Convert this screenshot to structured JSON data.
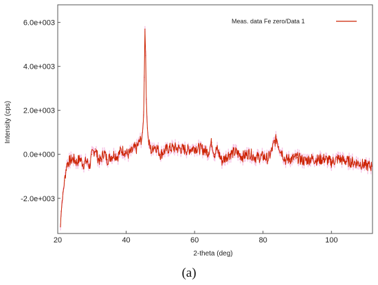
{
  "chart_data": {
    "type": "line",
    "title": "",
    "xlabel": "2-theta (deg)",
    "ylabel": "Intensity (cps)",
    "xlim": [
      20,
      112
    ],
    "ylim": [
      -3600,
      6800
    ],
    "x_ticks": [
      20,
      40,
      60,
      80,
      100
    ],
    "x_tick_labels": [
      "20",
      "40",
      "60",
      "80",
      "100"
    ],
    "y_ticks": [
      -2000,
      0,
      2000,
      4000,
      6000
    ],
    "y_tick_labels": [
      "-2.0e+003",
      "0.0e+000",
      "2.0e+003",
      "4.0e+003",
      "6.0e+003"
    ],
    "grid": false,
    "legend_position": "top-right",
    "series": [
      {
        "name": "Meas. data Fe zero/Data 1",
        "color": "#cc2200",
        "x": [
          20.8,
          21.0,
          21.3,
          21.6,
          22.0,
          22.4,
          22.8,
          23.5,
          24.5,
          25.5,
          26.5,
          27.5,
          28.5,
          29.3,
          30.0,
          31.0,
          31.8,
          32.5,
          33.5,
          34.5,
          35.5,
          36.5,
          37.5,
          38.5,
          39.5,
          40.5,
          41.5,
          42.5,
          43.0,
          43.5,
          44.0,
          44.5,
          44.8,
          45.1,
          45.3,
          45.5,
          45.7,
          45.9,
          46.2,
          46.5,
          47.0,
          47.5,
          48.0,
          49.0,
          50.0,
          52.0,
          54.0,
          56.0,
          58.0,
          60.0,
          62.0,
          64.0,
          65.0,
          65.8,
          66.5,
          68.0,
          70.0,
          72.0,
          74.0,
          76.0,
          78.0,
          80.0,
          81.5,
          82.5,
          83.3,
          84.0,
          84.6,
          85.5,
          86.5,
          88.0,
          90.0,
          92.0,
          94.0,
          96.0,
          98.0,
          100.0,
          102.0,
          104.0,
          106.0,
          108.0,
          110.0,
          111.8
        ],
        "y": [
          -3300,
          -2600,
          -2100,
          -1700,
          -1200,
          -700,
          -400,
          -300,
          -200,
          -350,
          -200,
          -450,
          -300,
          -550,
          0,
          250,
          -200,
          -300,
          100,
          -250,
          -100,
          0,
          -100,
          200,
          150,
          0,
          100,
          300,
          250,
          450,
          600,
          700,
          1000,
          1800,
          3500,
          5700,
          4500,
          2500,
          1200,
          600,
          300,
          100,
          400,
          300,
          0,
          250,
          300,
          250,
          200,
          300,
          250,
          100,
          550,
          0,
          250,
          -300,
          0,
          100,
          -100,
          50,
          -150,
          -100,
          -200,
          150,
          550,
          700,
          350,
          100,
          -250,
          -200,
          -150,
          -300,
          -200,
          -250,
          -200,
          -350,
          -200,
          -300,
          -350,
          -400,
          -500,
          -550
        ]
      }
    ]
  },
  "panel_label": "(a)"
}
